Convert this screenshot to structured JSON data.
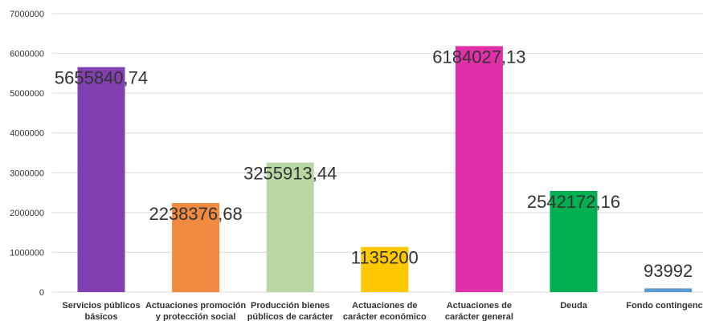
{
  "chart_data": {
    "type": "bar",
    "title": "",
    "xlabel": "",
    "ylabel": "",
    "ylim": [
      0,
      7000000
    ],
    "yticks": [
      0,
      1000000,
      2000000,
      3000000,
      4000000,
      5000000,
      6000000,
      7000000
    ],
    "ytick_labels": [
      "0",
      "1000000",
      "2000000",
      "3000000",
      "4000000",
      "5000000",
      "6000000",
      "7000000"
    ],
    "grid": true,
    "legend": "none",
    "categories": [
      [
        "Servicios públicos",
        "básicos"
      ],
      [
        "Actuaciones promoción",
        "y protección social"
      ],
      [
        "Producción bienes",
        "públicos de carácter"
      ],
      [
        "Actuaciones de",
        "carácter económico"
      ],
      [
        "Actuaciones de",
        "carácter general"
      ],
      [
        "Deuda"
      ],
      [
        "Fondo contingencia"
      ]
    ],
    "values": [
      5655840.74,
      2238376.68,
      3255913.44,
      1135200,
      6184027.13,
      2542172.16,
      93992
    ],
    "data_labels": [
      "5655840,74",
      "2238376,68",
      "3255913,44",
      "1135200",
      "6184027,13",
      "2542172,16",
      "93992"
    ],
    "colors": [
      "#8040b0",
      "#ef8a40",
      "#b8d7a3",
      "#ffc800",
      "#e02fa8",
      "#00b050",
      "#5b9bd5"
    ]
  }
}
